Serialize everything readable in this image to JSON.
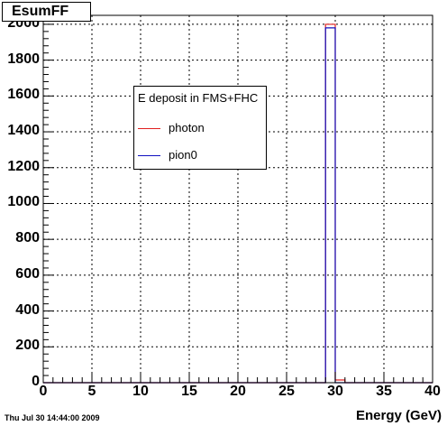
{
  "title": "EsumFF",
  "footer_date": "Thu Jul 30 14:44:00 2009",
  "legend": {
    "header": "E deposit in FMS+FHC",
    "entries": [
      {
        "label": "photon",
        "color": "#e02020"
      },
      {
        "label": "pion0",
        "color": "#1010c0"
      }
    ]
  },
  "chart_data": {
    "type": "bar",
    "title": "EsumFF",
    "xlabel": "Energy (GeV)",
    "ylabel": "",
    "xlim": [
      0,
      40
    ],
    "ylim": [
      0,
      2050
    ],
    "grid": true,
    "legend_placement": "upper-left-center",
    "xticks": [
      0,
      5,
      10,
      15,
      20,
      25,
      30,
      35,
      40
    ],
    "yticks": [
      0,
      200,
      400,
      600,
      800,
      1000,
      1200,
      1400,
      1600,
      1800,
      2000
    ],
    "bin_width": 1,
    "series": [
      {
        "name": "photon",
        "color": "#e02020",
        "bins": [
          {
            "x0": 29,
            "x1": 30,
            "value": 2000
          },
          {
            "x0": 30,
            "x1": 31,
            "value": 15
          }
        ]
      },
      {
        "name": "pion0",
        "color": "#1010c0",
        "bins": [
          {
            "x0": 29,
            "x1": 30,
            "value": 1980
          }
        ]
      }
    ]
  }
}
